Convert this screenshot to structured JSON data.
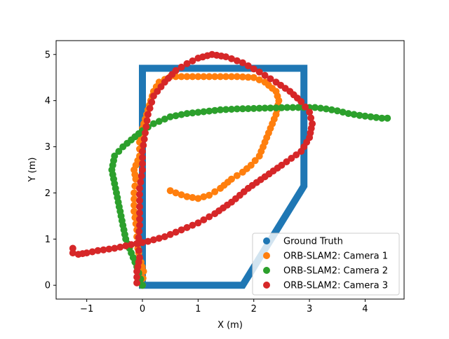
{
  "chart_data": {
    "type": "scatter",
    "title": "",
    "xlabel": "X (m)",
    "ylabel": "Y (m)",
    "xlim": [
      -1.55,
      4.7
    ],
    "ylim": [
      -0.3,
      5.3
    ],
    "xticks": [
      -1,
      0,
      1,
      2,
      3,
      4
    ],
    "yticks": [
      0,
      1,
      2,
      3,
      4,
      5
    ],
    "grid": false,
    "legend_position": "lower right",
    "series": [
      {
        "name": "Ground Truth",
        "color": "#1f77b4",
        "polyline": [
          [
            0,
            0
          ],
          [
            1.8,
            0
          ],
          [
            2.9,
            2.15
          ],
          [
            2.9,
            4.7
          ],
          [
            0,
            4.7
          ],
          [
            0,
            0
          ]
        ]
      },
      {
        "name": "ORB-SLAM2: Camera 1",
        "color": "#ff7f0e",
        "points": [
          [
            0.0,
            0.0
          ],
          [
            0.02,
            0.3
          ],
          [
            -0.05,
            0.6
          ],
          [
            -0.1,
            0.9
          ],
          [
            -0.1,
            1.2
          ],
          [
            -0.15,
            1.6
          ],
          [
            -0.15,
            2.0
          ],
          [
            -0.12,
            2.3
          ],
          [
            -0.15,
            2.5
          ],
          [
            -0.05,
            2.8
          ],
          [
            -0.05,
            3.1
          ],
          [
            0.0,
            3.4
          ],
          [
            0.05,
            3.6
          ],
          [
            0.1,
            3.8
          ],
          [
            0.15,
            4.0
          ],
          [
            0.2,
            4.2
          ],
          [
            0.3,
            4.4
          ],
          [
            0.5,
            4.52
          ],
          [
            0.8,
            4.52
          ],
          [
            1.1,
            4.52
          ],
          [
            1.4,
            4.52
          ],
          [
            1.7,
            4.52
          ],
          [
            2.0,
            4.5
          ],
          [
            2.2,
            4.4
          ],
          [
            2.4,
            4.2
          ],
          [
            2.45,
            4.0
          ],
          [
            2.4,
            3.7
          ],
          [
            2.3,
            3.4
          ],
          [
            2.2,
            3.1
          ],
          [
            2.1,
            2.8
          ],
          [
            1.95,
            2.6
          ],
          [
            1.8,
            2.45
          ],
          [
            1.6,
            2.3
          ],
          [
            1.4,
            2.1
          ],
          [
            1.2,
            1.95
          ],
          [
            1.0,
            1.88
          ],
          [
            0.8,
            1.92
          ],
          [
            0.6,
            2.0
          ],
          [
            0.5,
            2.05
          ]
        ]
      },
      {
        "name": "ORB-SLAM2: Camera 2",
        "color": "#2ca02c",
        "points": [
          [
            0.0,
            0.0
          ],
          [
            -0.1,
            0.4
          ],
          [
            -0.2,
            0.7
          ],
          [
            -0.3,
            1.0
          ],
          [
            -0.35,
            1.3
          ],
          [
            -0.4,
            1.6
          ],
          [
            -0.45,
            1.9
          ],
          [
            -0.5,
            2.2
          ],
          [
            -0.55,
            2.5
          ],
          [
            -0.5,
            2.8
          ],
          [
            -0.35,
            3.0
          ],
          [
            -0.2,
            3.15
          ],
          [
            0.0,
            3.35
          ],
          [
            0.2,
            3.5
          ],
          [
            0.5,
            3.65
          ],
          [
            0.8,
            3.72
          ],
          [
            1.1,
            3.76
          ],
          [
            1.4,
            3.8
          ],
          [
            1.7,
            3.82
          ],
          [
            2.0,
            3.83
          ],
          [
            2.3,
            3.84
          ],
          [
            2.6,
            3.85
          ],
          [
            2.9,
            3.85
          ],
          [
            3.1,
            3.85
          ],
          [
            3.3,
            3.82
          ],
          [
            3.5,
            3.78
          ],
          [
            3.7,
            3.72
          ],
          [
            3.9,
            3.68
          ],
          [
            4.1,
            3.65
          ],
          [
            4.3,
            3.62
          ],
          [
            4.4,
            3.62
          ]
        ]
      },
      {
        "name": "ORB-SLAM2: Camera 3",
        "color": "#d62728",
        "points": [
          [
            -0.1,
            0.05
          ],
          [
            -0.1,
            0.3
          ],
          [
            -0.05,
            0.6
          ],
          [
            -0.08,
            0.9
          ],
          [
            -0.05,
            1.3
          ],
          [
            -0.05,
            1.7
          ],
          [
            -0.05,
            2.1
          ],
          [
            0.0,
            2.5
          ],
          [
            0.0,
            2.9
          ],
          [
            0.05,
            3.3
          ],
          [
            0.1,
            3.7
          ],
          [
            0.2,
            4.1
          ],
          [
            0.4,
            4.4
          ],
          [
            0.6,
            4.65
          ],
          [
            0.8,
            4.8
          ],
          [
            1.0,
            4.92
          ],
          [
            1.25,
            5.0
          ],
          [
            1.5,
            4.95
          ],
          [
            1.8,
            4.82
          ],
          [
            2.1,
            4.62
          ],
          [
            2.4,
            4.4
          ],
          [
            2.65,
            4.2
          ],
          [
            2.85,
            3.98
          ],
          [
            3.0,
            3.75
          ],
          [
            3.05,
            3.5
          ],
          [
            3.0,
            3.2
          ],
          [
            2.85,
            2.9
          ],
          [
            2.5,
            2.6
          ],
          [
            2.2,
            2.35
          ],
          [
            1.9,
            2.1
          ],
          [
            1.6,
            1.8
          ],
          [
            1.3,
            1.55
          ],
          [
            1.0,
            1.35
          ],
          [
            0.7,
            1.2
          ],
          [
            0.4,
            1.05
          ],
          [
            0.1,
            0.95
          ],
          [
            -0.2,
            0.88
          ],
          [
            -0.5,
            0.8
          ],
          [
            -0.8,
            0.75
          ],
          [
            -1.0,
            0.7
          ],
          [
            -1.15,
            0.67
          ],
          [
            -1.25,
            0.7
          ],
          [
            -1.25,
            0.8
          ]
        ]
      }
    ]
  }
}
